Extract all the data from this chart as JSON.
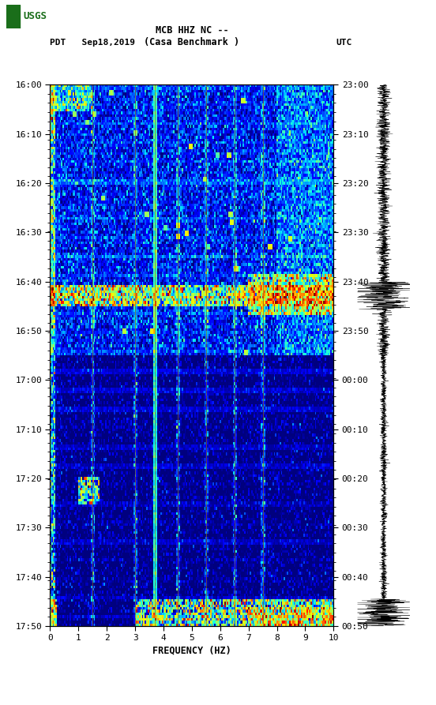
{
  "title_line1": "MCB HHZ NC --",
  "title_line2": "(Casa Benchmark )",
  "left_label": "PDT   Sep18,2019",
  "right_label": "UTC",
  "xlabel": "FREQUENCY (HZ)",
  "freq_min": 0,
  "freq_max": 10,
  "time_labels_left": [
    "16:00",
    "16:10",
    "16:20",
    "16:30",
    "16:40",
    "16:50",
    "17:00",
    "17:10",
    "17:20",
    "17:30",
    "17:40",
    "17:50"
  ],
  "time_labels_right": [
    "23:00",
    "23:10",
    "23:20",
    "23:30",
    "23:40",
    "23:50",
    "00:00",
    "00:10",
    "00:20",
    "00:30",
    "00:40",
    "00:50"
  ],
  "freq_ticks": [
    0,
    1,
    2,
    3,
    4,
    5,
    6,
    7,
    8,
    9,
    10
  ],
  "background_color": "#ffffff",
  "spectrogram_cmap": "jet",
  "n_time_bins": 200,
  "n_freq_bins": 200,
  "seed": 12345,
  "vline_freqs": [
    1.5,
    3.0,
    3.7,
    4.5,
    5.5,
    6.5,
    7.5
  ],
  "vline_color": "#8B6914",
  "vline_lw": 0.6
}
